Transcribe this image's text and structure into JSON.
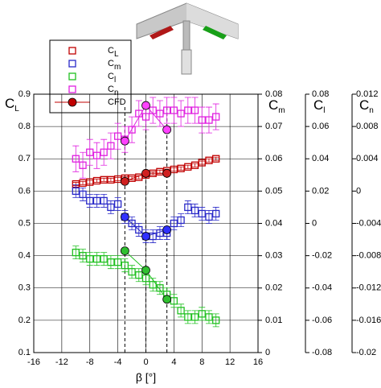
{
  "chart_data": {
    "type": "scatter",
    "xlabel": "β [°]",
    "xlim": [
      -16,
      16
    ],
    "xticks": [
      -16,
      -12,
      -8,
      -4,
      0,
      4,
      8,
      12,
      16
    ],
    "ylabel": {
      "text": "C",
      "sub": "L"
    },
    "ylim": [
      0.1,
      0.9
    ],
    "yticks": [
      0.1,
      0.2,
      0.3,
      0.4,
      0.5,
      0.6,
      0.7,
      0.8,
      0.9
    ],
    "y2label": {
      "text": "C",
      "sub": "m"
    },
    "y2lim": [
      0,
      0.08
    ],
    "y2ticks": [
      0,
      0.01,
      0.02,
      0.03,
      0.04,
      0.05,
      0.06,
      0.07,
      0.08
    ],
    "y3label": {
      "text": "C",
      "sub": "l"
    },
    "y3lim": [
      -0.08,
      0.08
    ],
    "y3ticks": [
      -0.08,
      -0.06,
      -0.04,
      -0.02,
      0,
      0.02,
      0.04,
      0.06,
      0.08
    ],
    "y4label": {
      "text": "C",
      "sub": "n"
    },
    "y4lim": [
      -0.02,
      0.012
    ],
    "y4ticks": [
      -0.02,
      -0.016,
      -0.012,
      -0.008,
      -0.004,
      0,
      0.004,
      0.008,
      0.012
    ],
    "grid": true,
    "x": [
      -10,
      -9,
      -8,
      -7,
      -6,
      -5,
      -4,
      -3,
      -2,
      -1,
      0,
      1,
      2,
      3,
      4,
      5,
      6,
      7,
      8,
      9,
      10
    ],
    "series": [
      {
        "name": "C",
        "name_sub": "L",
        "axis": "y",
        "color": "#c00000",
        "cfd_color": "#d02020",
        "error": 0.005,
        "values": [
          0.622,
          0.625,
          0.628,
          0.632,
          0.635,
          0.635,
          0.637,
          0.64,
          0.64,
          0.643,
          0.65,
          0.655,
          0.66,
          0.663,
          0.667,
          0.67,
          0.675,
          0.68,
          0.688,
          0.695,
          0.7
        ],
        "cfd_values": [
          0.63,
          0.655,
          0.655
        ]
      },
      {
        "name": "C",
        "name_sub": "m",
        "axis": "y2",
        "color": "#2828c8",
        "cfd_color": "#3030ff",
        "error": 0.002,
        "values": [
          0.05,
          0.049,
          0.047,
          0.047,
          0.047,
          0.045,
          0.046,
          0.042,
          0.04,
          0.038,
          0.036,
          0.036,
          0.037,
          0.037,
          0.04,
          0.041,
          0.045,
          0.044,
          0.043,
          0.042,
          0.043
        ],
        "cfd_values": [
          0.042,
          0.036,
          0.038
        ]
      },
      {
        "name": "C",
        "name_sub": "l",
        "axis": "y3",
        "color": "#20c020",
        "cfd_color": "#30c030",
        "error": 0.004,
        "values": [
          -0.018,
          -0.02,
          -0.022,
          -0.022,
          -0.022,
          -0.024,
          -0.024,
          -0.026,
          -0.03,
          -0.032,
          -0.034,
          -0.038,
          -0.04,
          -0.044,
          -0.048,
          -0.054,
          -0.058,
          -0.058,
          -0.056,
          -0.058,
          -0.06
        ],
        "cfd_values": [
          -0.017,
          -0.029,
          -0.047
        ]
      },
      {
        "name": "C",
        "name_sub": "n",
        "axis": "y4",
        "color": "#e020e0",
        "cfd_color": "#ff40ff",
        "error": 0.0016,
        "values": [
          0.004,
          0.0032,
          0.0048,
          0.0044,
          0.0048,
          0.0056,
          0.0068,
          0.0064,
          0.0076,
          0.0096,
          0.0092,
          0.01,
          0.0096,
          0.01,
          0.01,
          0.0096,
          0.01,
          0.01,
          0.0088,
          0.0088,
          0.0092
        ],
        "cfd_values": [
          0.0062,
          0.0106,
          0.0076
        ]
      }
    ],
    "cfd": {
      "name": "CFD",
      "x": [
        -3,
        0,
        3
      ],
      "color": "#c00000"
    }
  }
}
